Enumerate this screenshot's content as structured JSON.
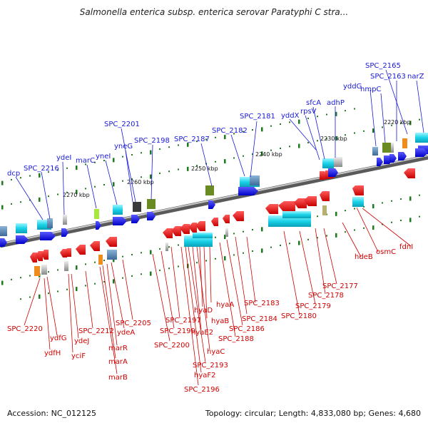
{
  "title": "Salmonella enterica subsp. enterica serovar Paratyphi C stra...",
  "footer": {
    "accession": "Accession: NC_012125",
    "info": "Topology: circular; Length: 4,833,080 bp; Genes: 4,680"
  },
  "colors": {
    "forward": "#1a1ad6",
    "reverse": "#d00000",
    "backbone": "#888888"
  },
  "kbp_labels": [
    "2220 kbp",
    "2230 kbp",
    "2240 kbp",
    "2250 kbp",
    "2260 kbp",
    "2270 kbp"
  ],
  "forward_labels": [
    "SPC_2165",
    "SPC_2163",
    "narZ",
    "yddG",
    "nmpC",
    "sfcA",
    "adhP",
    "rpsV",
    "yddX",
    "SPC_2181",
    "SPC_2182",
    "SPC_2187",
    "SPC_2198",
    "SPC_2201",
    "yneG",
    "yneI",
    "marC",
    "ydeI",
    "SPC_2216",
    "dcp"
  ],
  "reverse_labels": [
    "fdnI",
    "osmC",
    "hdeB",
    "SPC_2177",
    "SPC_2178",
    "SPC_2179",
    "SPC_2180",
    "SPC_2183",
    "SPC_2184",
    "SPC_2186",
    "SPC_2188",
    "hyaA",
    "hyaB",
    "hyaD",
    "hyaC",
    "hyaE2",
    "SPC_2193",
    "hyaF2",
    "SPC_2196",
    "SPC_2197",
    "SPC_2199",
    "SPC_2200",
    "SPC_2205",
    "ydeA",
    "marR",
    "marA",
    "marB",
    "SPC_2212",
    "yciF",
    "ydeJ",
    "ydfG",
    "ydfH",
    "SPC_2220"
  ]
}
